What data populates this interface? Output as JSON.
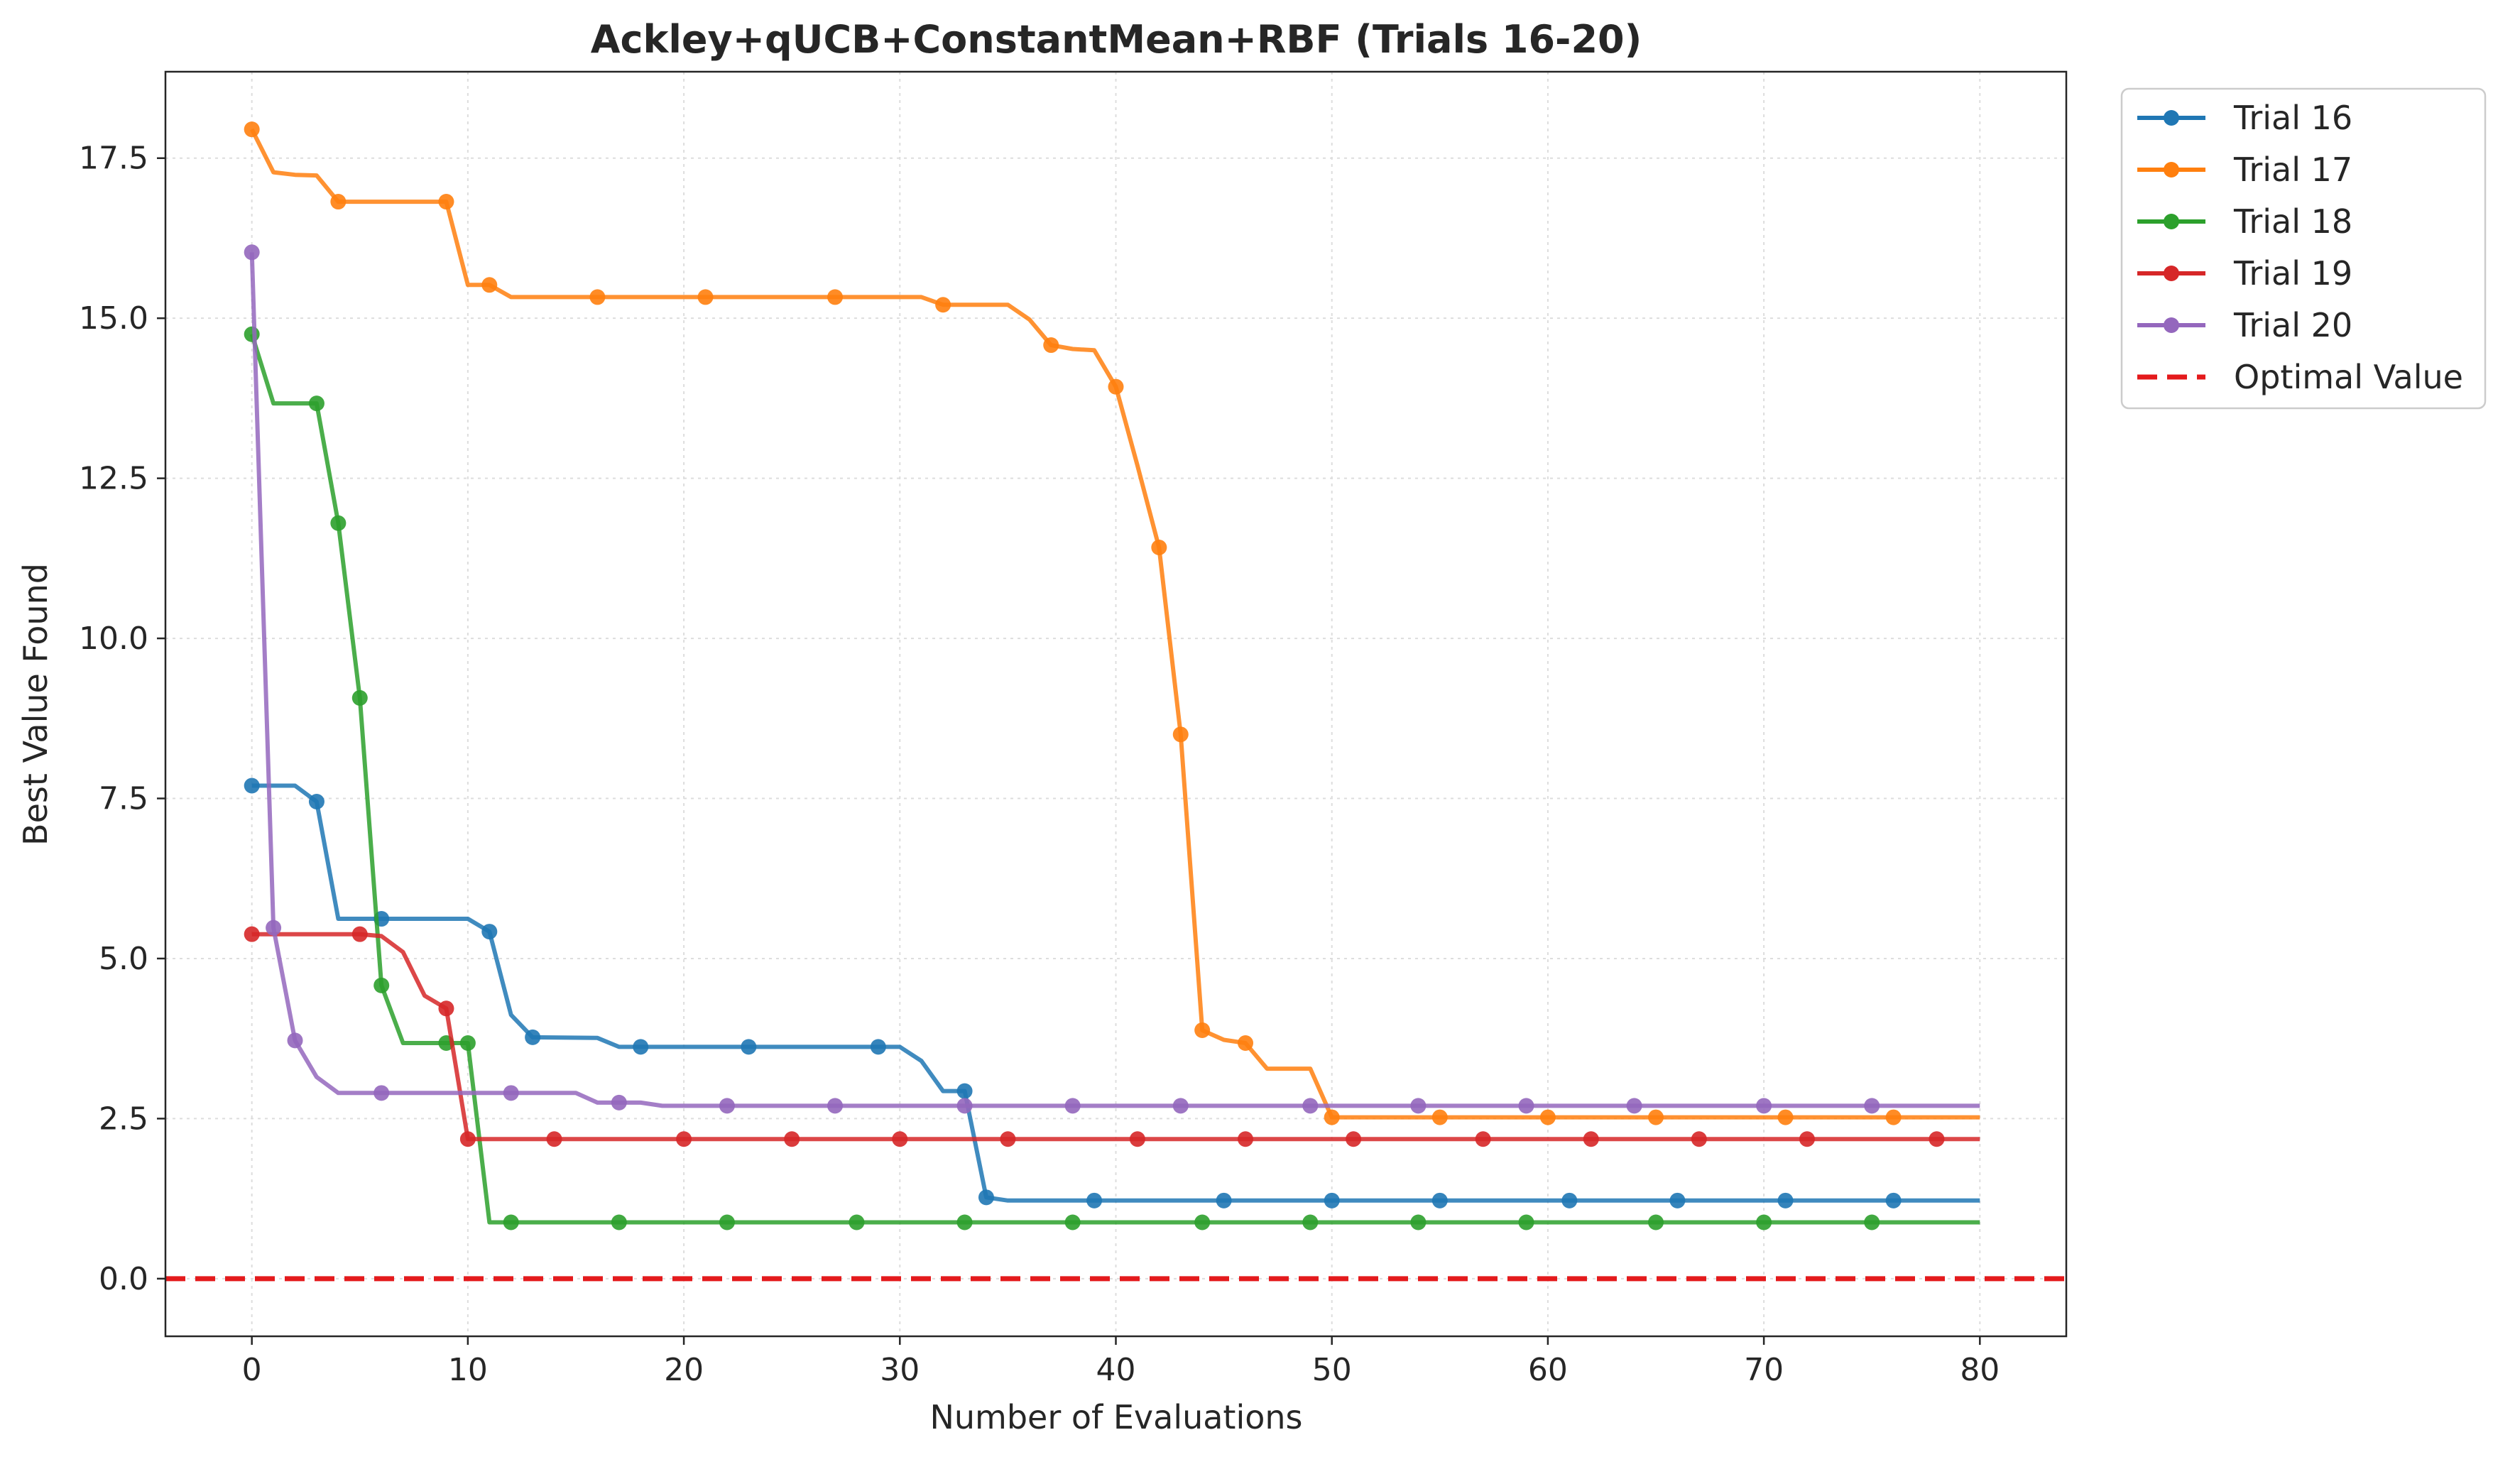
{
  "chart_data": {
    "type": "line",
    "title": "Ackley+qUCB+ConstantMean+RBF (Trials 16-20)",
    "xlabel": "Number of Evaluations",
    "ylabel": "Best Value Found",
    "xlim": [
      -4,
      84
    ],
    "ylim": [
      -0.9,
      18.85
    ],
    "xticks": [
      0,
      10,
      20,
      30,
      40,
      50,
      60,
      70,
      80
    ],
    "xtick_labels": [
      "0",
      "10",
      "20",
      "30",
      "40",
      "50",
      "60",
      "70",
      "80"
    ],
    "yticks": [
      0.0,
      2.5,
      5.0,
      7.5,
      10.0,
      12.5,
      15.0,
      17.5
    ],
    "ytick_labels": [
      "0.0",
      "2.5",
      "5.0",
      "7.5",
      "10.0",
      "12.5",
      "15.0",
      "17.5"
    ],
    "grid": true,
    "legend_placement": "outside upper right",
    "optimal_value": {
      "name": "Optimal Value",
      "y": 0.0,
      "color": "#e41a1c"
    },
    "series": [
      {
        "name": "Trial 16",
        "color": "#1f77b4",
        "points": [
          [
            0,
            7.7
          ],
          [
            2,
            7.7
          ],
          [
            3,
            7.45
          ],
          [
            4,
            5.62
          ],
          [
            6,
            5.62
          ],
          [
            10,
            5.62
          ],
          [
            11,
            5.42
          ],
          [
            12,
            4.12
          ],
          [
            13,
            3.77
          ],
          [
            16,
            3.76
          ],
          [
            17,
            3.62
          ],
          [
            18,
            3.62
          ],
          [
            23,
            3.62
          ],
          [
            29,
            3.62
          ],
          [
            30,
            3.62
          ],
          [
            31,
            3.4
          ],
          [
            32,
            2.93
          ],
          [
            33,
            2.93
          ],
          [
            34,
            1.27
          ],
          [
            35,
            1.22
          ],
          [
            80,
            1.22
          ]
        ],
        "markers": [
          [
            0,
            7.7
          ],
          [
            3,
            7.45
          ],
          [
            6,
            5.62
          ],
          [
            11,
            5.42
          ],
          [
            13,
            3.77
          ],
          [
            18,
            3.62
          ],
          [
            23,
            3.62
          ],
          [
            29,
            3.62
          ],
          [
            33,
            2.93
          ],
          [
            34,
            1.27
          ],
          [
            39,
            1.22
          ],
          [
            45,
            1.22
          ],
          [
            50,
            1.22
          ],
          [
            55,
            1.22
          ],
          [
            61,
            1.22
          ],
          [
            66,
            1.22
          ],
          [
            71,
            1.22
          ],
          [
            76,
            1.22
          ]
        ]
      },
      {
        "name": "Trial 17",
        "color": "#ff7f0e",
        "points": [
          [
            0,
            17.95
          ],
          [
            1,
            17.28
          ],
          [
            2,
            17.24
          ],
          [
            3,
            17.23
          ],
          [
            4,
            16.82
          ],
          [
            9,
            16.82
          ],
          [
            10,
            15.52
          ],
          [
            11,
            15.52
          ],
          [
            12,
            15.33
          ],
          [
            16,
            15.33
          ],
          [
            21,
            15.33
          ],
          [
            27,
            15.33
          ],
          [
            31,
            15.33
          ],
          [
            32,
            15.21
          ],
          [
            35,
            15.21
          ],
          [
            36,
            14.98
          ],
          [
            37,
            14.58
          ],
          [
            38,
            14.52
          ],
          [
            39,
            14.5
          ],
          [
            40,
            13.93
          ],
          [
            41,
            12.7
          ],
          [
            42,
            11.42
          ],
          [
            43,
            8.5
          ],
          [
            44,
            3.88
          ],
          [
            45,
            3.73
          ],
          [
            46,
            3.68
          ],
          [
            47,
            3.28
          ],
          [
            48,
            3.28
          ],
          [
            49,
            3.28
          ],
          [
            50,
            2.52
          ],
          [
            80,
            2.52
          ]
        ],
        "markers": [
          [
            0,
            17.95
          ],
          [
            4,
            16.82
          ],
          [
            9,
            16.82
          ],
          [
            11,
            15.52
          ],
          [
            16,
            15.33
          ],
          [
            21,
            15.33
          ],
          [
            27,
            15.33
          ],
          [
            32,
            15.21
          ],
          [
            37,
            14.58
          ],
          [
            40,
            13.93
          ],
          [
            42,
            11.42
          ],
          [
            43,
            8.5
          ],
          [
            44,
            3.88
          ],
          [
            46,
            3.68
          ],
          [
            50,
            2.52
          ],
          [
            55,
            2.52
          ],
          [
            60,
            2.52
          ],
          [
            65,
            2.52
          ],
          [
            71,
            2.52
          ],
          [
            76,
            2.52
          ]
        ]
      },
      {
        "name": "Trial 18",
        "color": "#2ca02c",
        "points": [
          [
            0,
            14.75
          ],
          [
            1,
            13.67
          ],
          [
            2,
            13.67
          ],
          [
            3,
            13.67
          ],
          [
            4,
            11.8
          ],
          [
            5,
            9.07
          ],
          [
            6,
            4.58
          ],
          [
            7,
            3.68
          ],
          [
            9,
            3.68
          ],
          [
            10,
            3.68
          ],
          [
            11,
            0.88
          ],
          [
            80,
            0.88
          ]
        ],
        "markers": [
          [
            0,
            14.75
          ],
          [
            3,
            13.67
          ],
          [
            4,
            11.8
          ],
          [
            5,
            9.07
          ],
          [
            6,
            4.58
          ],
          [
            9,
            3.68
          ],
          [
            10,
            3.68
          ],
          [
            12,
            0.88
          ],
          [
            17,
            0.88
          ],
          [
            22,
            0.88
          ],
          [
            28,
            0.88
          ],
          [
            33,
            0.88
          ],
          [
            38,
            0.88
          ],
          [
            44,
            0.88
          ],
          [
            49,
            0.88
          ],
          [
            54,
            0.88
          ],
          [
            59,
            0.88
          ],
          [
            65,
            0.88
          ],
          [
            70,
            0.88
          ],
          [
            75,
            0.88
          ]
        ]
      },
      {
        "name": "Trial 19",
        "color": "#d62728",
        "points": [
          [
            0,
            5.38
          ],
          [
            5,
            5.38
          ],
          [
            6,
            5.35
          ],
          [
            7,
            5.1
          ],
          [
            8,
            4.42
          ],
          [
            9,
            4.22
          ],
          [
            10,
            2.18
          ],
          [
            80,
            2.18
          ]
        ],
        "markers": [
          [
            0,
            5.38
          ],
          [
            5,
            5.38
          ],
          [
            9,
            4.22
          ],
          [
            10,
            2.18
          ],
          [
            14,
            2.18
          ],
          [
            20,
            2.18
          ],
          [
            25,
            2.18
          ],
          [
            30,
            2.18
          ],
          [
            35,
            2.18
          ],
          [
            41,
            2.18
          ],
          [
            46,
            2.18
          ],
          [
            51,
            2.18
          ],
          [
            57,
            2.18
          ],
          [
            62,
            2.18
          ],
          [
            67,
            2.18
          ],
          [
            72,
            2.18
          ],
          [
            78,
            2.18
          ]
        ]
      },
      {
        "name": "Trial 20",
        "color": "#9467bd",
        "points": [
          [
            0,
            16.03
          ],
          [
            1,
            5.48
          ],
          [
            2,
            3.72
          ],
          [
            3,
            3.15
          ],
          [
            4,
            2.9
          ],
          [
            6,
            2.9
          ],
          [
            12,
            2.9
          ],
          [
            15,
            2.9
          ],
          [
            16,
            2.75
          ],
          [
            18,
            2.75
          ],
          [
            19,
            2.7
          ],
          [
            80,
            2.7
          ]
        ],
        "markers": [
          [
            0,
            16.03
          ],
          [
            1,
            5.48
          ],
          [
            2,
            3.72
          ],
          [
            6,
            2.9
          ],
          [
            12,
            2.9
          ],
          [
            17,
            2.75
          ],
          [
            22,
            2.7
          ],
          [
            27,
            2.7
          ],
          [
            33,
            2.7
          ],
          [
            38,
            2.7
          ],
          [
            43,
            2.7
          ],
          [
            49,
            2.7
          ],
          [
            54,
            2.7
          ],
          [
            59,
            2.7
          ],
          [
            64,
            2.7
          ],
          [
            70,
            2.7
          ],
          [
            75,
            2.7
          ]
        ]
      }
    ]
  }
}
